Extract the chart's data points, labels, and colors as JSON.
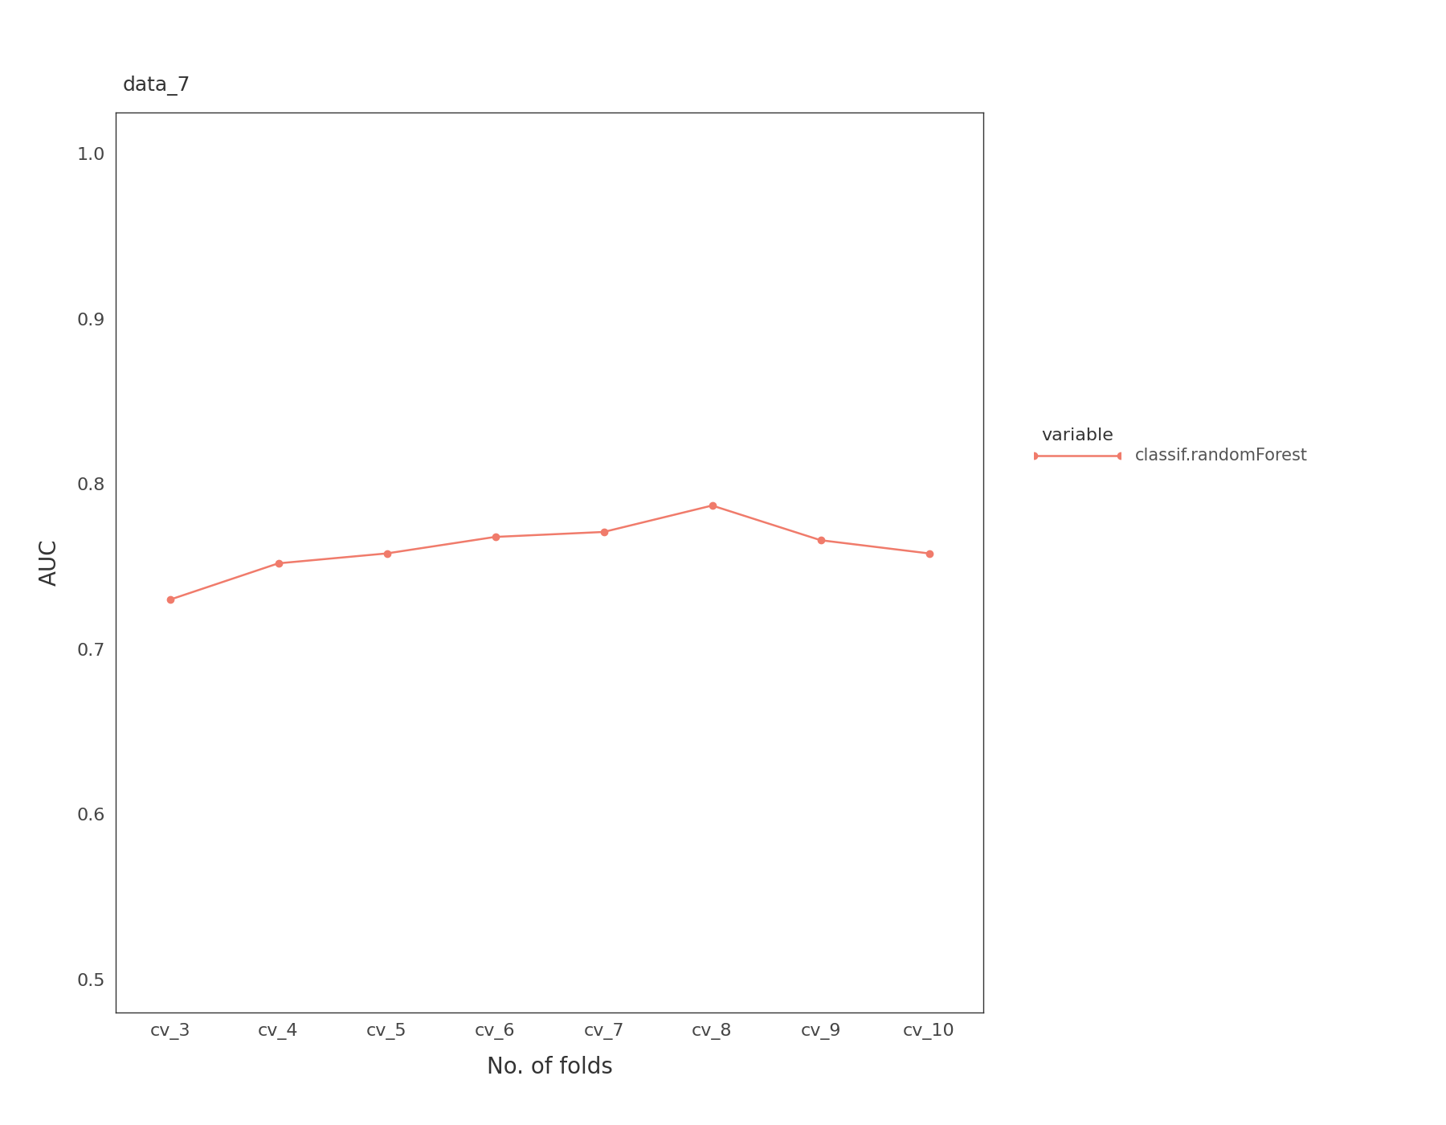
{
  "x_labels": [
    "cv_3",
    "cv_4",
    "cv_5",
    "cv_6",
    "cv_7",
    "cv_8",
    "cv_9",
    "cv_10"
  ],
  "y_values": [
    0.73,
    0.752,
    0.758,
    0.768,
    0.771,
    0.787,
    0.766,
    0.758
  ],
  "line_color": "#F07B6B",
  "marker": "o",
  "marker_size": 6,
  "line_width": 1.8,
  "title": "data_7",
  "xlabel": "No. of folds",
  "ylabel": "AUC",
  "ylim": [
    0.48,
    1.025
  ],
  "yticks": [
    0.5,
    0.6,
    0.7,
    0.8,
    0.9,
    1.0
  ],
  "legend_title": "variable",
  "legend_label": "classif.randomForest",
  "title_fontsize": 18,
  "axis_label_fontsize": 20,
  "tick_fontsize": 16,
  "legend_fontsize": 15,
  "legend_title_fontsize": 16,
  "background_color": "#ffffff",
  "plot_background": "#ffffff",
  "spine_color": "#333333"
}
